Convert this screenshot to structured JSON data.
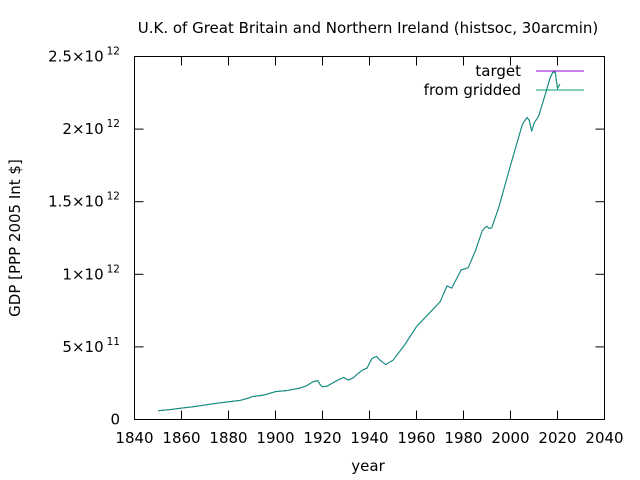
{
  "chart_data": {
    "type": "line",
    "title": "U.K. of Great Britain and Northern Ireland (histsoc, 30arcmin)",
    "xlabel": "year",
    "ylabel": "GDP [PPP 2005 Int $]",
    "xlim": [
      1840,
      2040
    ],
    "ylim": [
      0,
      2500000000000
    ],
    "x_ticks": [
      "1840",
      "1860",
      "1880",
      "1900",
      "1920",
      "1940",
      "1960",
      "1980",
      "2000",
      "2020",
      "2040"
    ],
    "y_ticks": [
      {
        "value": 0,
        "mantissa": "0",
        "exp": ""
      },
      {
        "value": 500000000000,
        "mantissa": "5×10",
        "exp": "11"
      },
      {
        "value": 1000000000000,
        "mantissa": "1×10",
        "exp": "12"
      },
      {
        "value": 1500000000000,
        "mantissa": "1.5×10",
        "exp": "12"
      },
      {
        "value": 2000000000000,
        "mantissa": "2×10",
        "exp": "12"
      },
      {
        "value": 2500000000000,
        "mantissa": "2.5×10",
        "exp": "12"
      }
    ],
    "grid": false,
    "legend_position": "top-right",
    "colors": {
      "target": "#9400d3",
      "from gridded": "#009e73"
    },
    "x": [
      1850,
      1855,
      1860,
      1865,
      1870,
      1875,
      1880,
      1885,
      1889,
      1890,
      1895,
      1900,
      1905,
      1910,
      1913,
      1916,
      1918,
      1919,
      1920,
      1922,
      1925,
      1927,
      1929,
      1931,
      1933,
      1935,
      1937,
      1939,
      1941,
      1943,
      1944,
      1946,
      1947,
      1948,
      1950,
      1955,
      1960,
      1965,
      1970,
      1973,
      1975,
      1979,
      1980,
      1982,
      1985,
      1988,
      1989,
      1990,
      1991,
      1992,
      1995,
      2000,
      2005,
      2007,
      2008,
      2009,
      2010,
      2012,
      2015,
      2017,
      2018,
      2019,
      2020,
      2021
    ],
    "series": [
      {
        "name": "target",
        "values": [
          60000000000,
          68000000000,
          78000000000,
          88000000000,
          100000000000,
          112000000000,
          122000000000,
          132000000000,
          150000000000,
          158000000000,
          168000000000,
          192000000000,
          200000000000,
          215000000000,
          230000000000,
          260000000000,
          268000000000,
          240000000000,
          225000000000,
          230000000000,
          258000000000,
          275000000000,
          290000000000,
          272000000000,
          285000000000,
          315000000000,
          340000000000,
          355000000000,
          420000000000,
          435000000000,
          415000000000,
          390000000000,
          378000000000,
          390000000000,
          408000000000,
          515000000000,
          640000000000,
          725000000000,
          810000000000,
          920000000000,
          905000000000,
          1030000000000,
          1035000000000,
          1045000000000,
          1160000000000,
          1300000000000,
          1320000000000,
          1330000000000,
          1315000000000,
          1320000000000,
          1460000000000,
          1750000000000,
          2030000000000,
          2080000000000,
          2060000000000,
          1985000000000,
          2040000000000,
          2090000000000,
          2250000000000,
          2360000000000,
          2390000000000,
          2395000000000,
          2280000000000,
          2310000000000
        ]
      },
      {
        "name": "from gridded",
        "values": [
          60000000000,
          68000000000,
          78000000000,
          88000000000,
          100000000000,
          112000000000,
          122000000000,
          132000000000,
          150000000000,
          158000000000,
          168000000000,
          192000000000,
          200000000000,
          215000000000,
          230000000000,
          260000000000,
          268000000000,
          240000000000,
          225000000000,
          230000000000,
          258000000000,
          275000000000,
          290000000000,
          272000000000,
          285000000000,
          315000000000,
          340000000000,
          355000000000,
          420000000000,
          435000000000,
          415000000000,
          390000000000,
          378000000000,
          390000000000,
          408000000000,
          515000000000,
          640000000000,
          725000000000,
          810000000000,
          920000000000,
          905000000000,
          1030000000000,
          1035000000000,
          1045000000000,
          1160000000000,
          1300000000000,
          1320000000000,
          1330000000000,
          1315000000000,
          1320000000000,
          1460000000000,
          1750000000000,
          2030000000000,
          2080000000000,
          2060000000000,
          1985000000000,
          2040000000000,
          2090000000000,
          2250000000000,
          2360000000000,
          2390000000000,
          2395000000000,
          2280000000000,
          2310000000000
        ]
      }
    ]
  }
}
